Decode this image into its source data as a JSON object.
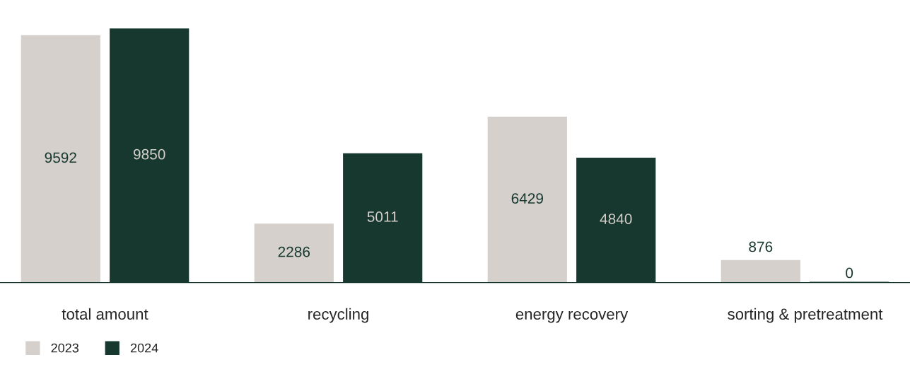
{
  "chart_data": {
    "type": "bar",
    "categories": [
      "total amount",
      "recycling",
      "energy recovery",
      "sorting & pretreatment"
    ],
    "series": [
      {
        "name": "2023",
        "color": "#d5d0cc",
        "values": [
          9592,
          2286,
          6429,
          876
        ]
      },
      {
        "name": "2024",
        "color": "#17382e",
        "values": [
          9850,
          5011,
          4840,
          0
        ]
      }
    ],
    "data_labels": true,
    "legend": "bottom left",
    "grid": false
  }
}
